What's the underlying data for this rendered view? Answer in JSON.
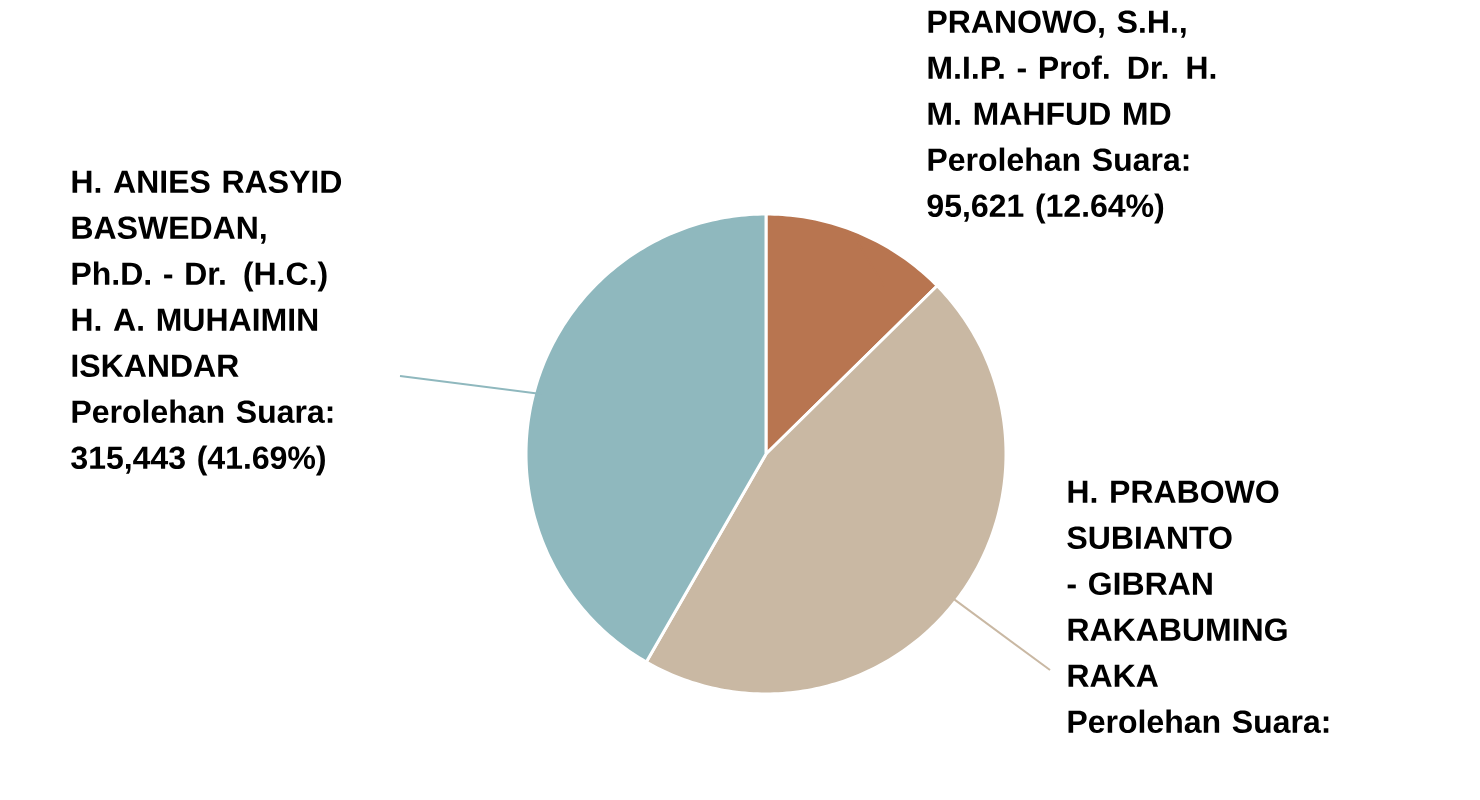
{
  "chart_data": {
    "type": "pie",
    "categories": [
      "PRANOWO, S.H., M.I.P. - Prof. Dr. H. M. MAHFUD MD",
      "H. PRABOWO SUBIANTO - GIBRAN RAKABUMING RAKA",
      "H. ANIES RASYID BASWEDAN, Ph.D. - Dr. (H.C.) H. A. MUHAIMIN ISKANDAR"
    ],
    "values": [
      12.64,
      45.67,
      41.69
    ],
    "colors": [
      "#b87550",
      "#c9b8a3",
      "#8fb8be"
    ],
    "value_labels": [
      "Perolehan Suara: 95,621 (12.64%)",
      "Perolehan Suara:",
      "Perolehan Suara: 315,443 (41.69%)"
    ]
  }
}
